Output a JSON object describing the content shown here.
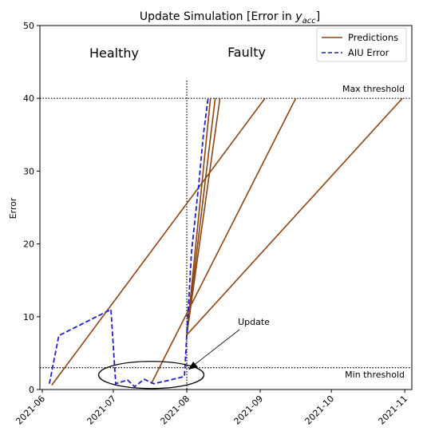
{
  "chart_data": {
    "type": "line",
    "title_prefix": "Update Simulation [Error in ",
    "title_var": "y",
    "title_sub": "acc",
    "title_suffix": "]",
    "ylabel": "Error",
    "xlabel": "",
    "ylim": [
      0,
      50
    ],
    "yticks": [
      0,
      10,
      20,
      30,
      40,
      50
    ],
    "xlim": [
      "2021-05-31",
      "2021-11-04"
    ],
    "xticks": [
      "2021-06-01",
      "2021-07-01",
      "2021-08-01",
      "2021-09-01",
      "2021-10-01",
      "2021-11-01"
    ],
    "xtick_labels": [
      "2021-06",
      "2021-07",
      "2021-08",
      "2021-09",
      "2021-10",
      "2021-11"
    ],
    "grid": false,
    "legend_position": "top-right",
    "colors": {
      "predictions": "#8B4513",
      "aiu_error": "#1f1fcc",
      "threshold": "#000000"
    },
    "series": [
      {
        "name": "AIU Error",
        "style": "dashed",
        "x": [
          "2021-06-04",
          "2021-06-08",
          "2021-06-30",
          "2021-07-02",
          "2021-07-07",
          "2021-07-10",
          "2021-07-14",
          "2021-07-18",
          "2021-07-25",
          "2021-07-31",
          "2021-08-01",
          "2021-08-03",
          "2021-08-06",
          "2021-08-08",
          "2021-08-10"
        ],
        "y": [
          0.8,
          7.4,
          11.0,
          0.8,
          1.3,
          0.4,
          1.4,
          0.8,
          1.3,
          1.8,
          7.5,
          19.0,
          28.0,
          35.0,
          40.0
        ]
      }
    ],
    "predictions": {
      "name": "Predictions",
      "lines": [
        {
          "x": [
            "2021-06-05",
            "2021-09-03"
          ],
          "y": [
            0.6,
            40.0
          ]
        },
        {
          "x": [
            "2021-08-01",
            "2021-08-11"
          ],
          "y": [
            7.5,
            40.0
          ]
        },
        {
          "x": [
            "2021-08-01",
            "2021-08-13"
          ],
          "y": [
            7.5,
            40.0
          ]
        },
        {
          "x": [
            "2021-08-01",
            "2021-08-15"
          ],
          "y": [
            7.5,
            40.0
          ]
        },
        {
          "x": [
            "2021-07-17",
            "2021-09-16"
          ],
          "y": [
            0.8,
            40.0
          ]
        },
        {
          "x": [
            "2021-08-01",
            "2021-10-31"
          ],
          "y": [
            7.5,
            40.0
          ]
        }
      ]
    },
    "thresholds": {
      "max": {
        "y": 40,
        "label": "Max threshold"
      },
      "min": {
        "y": 3,
        "label": "Min threshold"
      }
    },
    "update_marker": {
      "x": "2021-08-01",
      "label": "Update"
    },
    "regions": {
      "healthy": "Healthy",
      "faulty": "Faulty"
    },
    "update_ellipse": {
      "x_center": "2021-07-17",
      "y_center": 2.0
    }
  }
}
